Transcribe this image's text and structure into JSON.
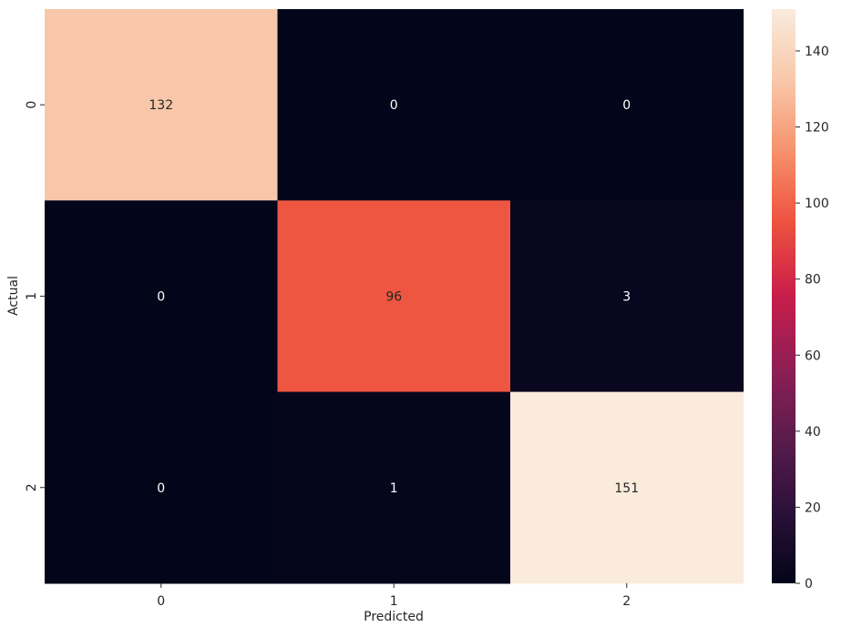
{
  "chart_data": {
    "type": "heatmap",
    "title": "",
    "xlabel": "Predicted",
    "ylabel": "Actual",
    "x_categories": [
      "0",
      "1",
      "2"
    ],
    "y_categories": [
      "0",
      "1",
      "2"
    ],
    "values": [
      [
        132,
        0,
        0
      ],
      [
        0,
        96,
        3
      ],
      [
        0,
        1,
        151
      ]
    ],
    "colorbar": {
      "min": 0,
      "max": 151,
      "ticks": [
        0,
        20,
        40,
        60,
        80,
        100,
        120,
        140
      ],
      "colormap": "rocket",
      "stops": [
        "#03051a",
        "#2b1138",
        "#5a1c4c",
        "#8e1f55",
        "#c81d4b",
        "#ed503e",
        "#f6906b",
        "#f8c7a9",
        "#faebdd"
      ]
    },
    "annotation_colors": {
      "light_text": "#ffffff",
      "dark_text": "#262626"
    },
    "legend": "colorbar-right",
    "grid": false
  }
}
